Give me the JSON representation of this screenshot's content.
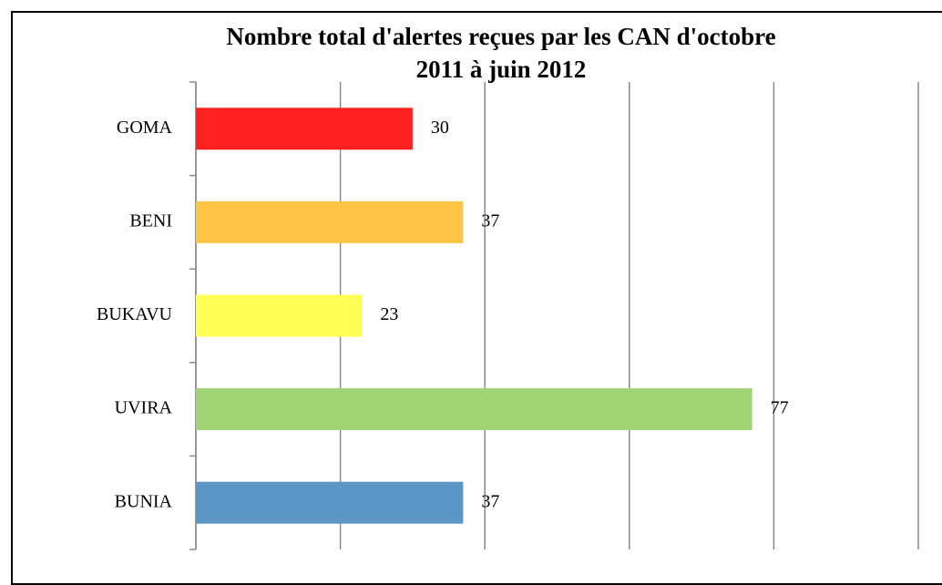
{
  "chart_data": {
    "type": "hbar",
    "title": "Nombre total d'alertes reçues par les CAN d'octobre\n2011 à juin 2012",
    "categories": [
      "GOMA",
      "BENI",
      "BUKAVU",
      "UVIRA",
      "BUNIA"
    ],
    "values": [
      30,
      37,
      23,
      77,
      37
    ],
    "colors": [
      "#ff2020",
      "#ffc544",
      "#ffff55",
      "#a0d474",
      "#5b97c6"
    ],
    "xlim": [
      0,
      100
    ],
    "xticks": [
      0,
      20,
      40,
      60,
      80,
      100
    ],
    "grid": true
  }
}
